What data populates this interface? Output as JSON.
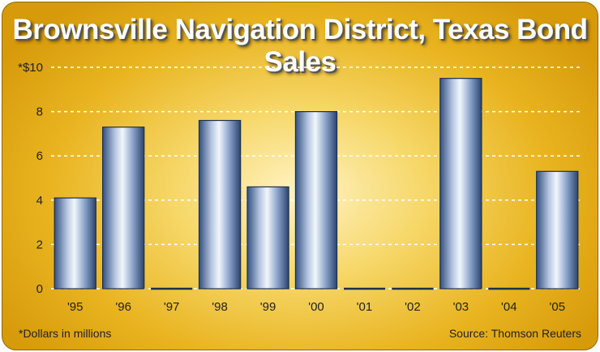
{
  "chart_data": {
    "type": "bar",
    "title": "Brownsville Navigation District, Texas Bond Sales",
    "categories": [
      "'95",
      "'96",
      "'97",
      "'98",
      "'99",
      "'00",
      "'01",
      "'02",
      "'03",
      "'04",
      "'05"
    ],
    "values": [
      4.1,
      7.3,
      0,
      7.6,
      4.6,
      8.0,
      0,
      0,
      9.5,
      0,
      5.3
    ],
    "ylim": [
      0,
      10
    ],
    "yticks": [
      "0",
      "2",
      "4",
      "6",
      "8",
      "*$10"
    ],
    "ytick_values": [
      0,
      2,
      4,
      6,
      8,
      10
    ],
    "grid": true,
    "footnote": "*Dollars in millions",
    "source": "Source: Thomson Reuters"
  }
}
